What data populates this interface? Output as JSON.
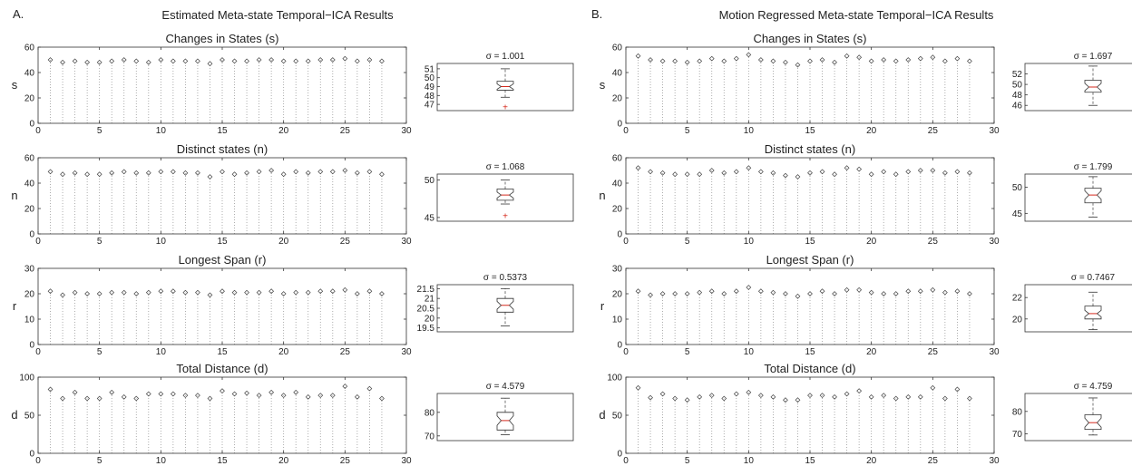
{
  "figure": {
    "panels": [
      {
        "letter": "A.",
        "title": "Estimated Meta-state Temporal−ICA Results"
      },
      {
        "letter": "B.",
        "title": "Motion Regressed Meta-state Temporal−ICA Results"
      }
    ]
  },
  "chart_data": [
    {
      "panel": "A",
      "type": "scatter",
      "title": "Changes in States (s)",
      "ylabel": "s",
      "xlim": [
        0,
        30
      ],
      "ylim": [
        0,
        60
      ],
      "xticks": [
        0,
        5,
        10,
        15,
        20,
        25,
        30
      ],
      "yticks": [
        0,
        20,
        40,
        60
      ],
      "x": [
        1,
        2,
        3,
        4,
        5,
        6,
        7,
        8,
        9,
        10,
        11,
        12,
        13,
        14,
        15,
        16,
        17,
        18,
        19,
        20,
        21,
        22,
        23,
        24,
        25,
        26,
        27,
        28
      ],
      "y": [
        50,
        48,
        49,
        48,
        48,
        49,
        50,
        49,
        48,
        50,
        49,
        49,
        49,
        47,
        50,
        49,
        49,
        50,
        50,
        49,
        49,
        49,
        50,
        50,
        51,
        49,
        50,
        49
      ],
      "box": {
        "sigma_label": "σ = 1.001",
        "yticks": [
          47,
          48,
          49,
          50,
          51
        ],
        "ylim": [
          46.3,
          51.6
        ],
        "whisker_low": 47.8,
        "q1": 48.6,
        "median": 49.0,
        "q3": 49.6,
        "whisker_high": 51.0,
        "notch_low": 48.7,
        "notch_high": 49.3,
        "outliers": [
          46.7
        ]
      }
    },
    {
      "panel": "A",
      "type": "scatter",
      "title": "Distinct states  (n)",
      "ylabel": "n",
      "xlim": [
        0,
        30
      ],
      "ylim": [
        0,
        60
      ],
      "xticks": [
        0,
        5,
        10,
        15,
        20,
        25,
        30
      ],
      "yticks": [
        0,
        20,
        40,
        60
      ],
      "x": [
        1,
        2,
        3,
        4,
        5,
        6,
        7,
        8,
        9,
        10,
        11,
        12,
        13,
        14,
        15,
        16,
        17,
        18,
        19,
        20,
        21,
        22,
        23,
        24,
        25,
        26,
        27,
        28
      ],
      "y": [
        49,
        47,
        48,
        47,
        47,
        48,
        49,
        48,
        48,
        49,
        49,
        48,
        48,
        45,
        49,
        47,
        48,
        49,
        50,
        47,
        49,
        48,
        49,
        49,
        50,
        48,
        49,
        47
      ],
      "box": {
        "sigma_label": "σ = 1.068",
        "yticks": [
          45,
          50
        ],
        "ylim": [
          44.5,
          50.8
        ],
        "whisker_low": 46.8,
        "q1": 47.3,
        "median": 48.0,
        "q3": 48.8,
        "whisker_high": 50.0,
        "notch_low": 47.6,
        "notch_high": 48.4,
        "outliers": [
          45.2
        ]
      }
    },
    {
      "panel": "A",
      "type": "scatter",
      "title": "Longest Span (r)",
      "ylabel": "r",
      "xlim": [
        0,
        30
      ],
      "ylim": [
        0,
        30
      ],
      "xticks": [
        0,
        5,
        10,
        15,
        20,
        25,
        30
      ],
      "yticks": [
        0,
        10,
        20,
        30
      ],
      "x": [
        1,
        2,
        3,
        4,
        5,
        6,
        7,
        8,
        9,
        10,
        11,
        12,
        13,
        14,
        15,
        16,
        17,
        18,
        19,
        20,
        21,
        22,
        23,
        24,
        25,
        26,
        27,
        28
      ],
      "y": [
        21,
        19.5,
        20.5,
        20,
        20,
        20.5,
        20.5,
        20,
        20.5,
        21,
        21,
        20.5,
        20.5,
        19.5,
        21,
        20.5,
        20.5,
        20.5,
        21,
        20,
        20.5,
        20.5,
        21,
        21,
        21.5,
        20,
        21,
        20
      ],
      "box": {
        "sigma_label": "σ = 0.5373",
        "yticks": [
          19.5,
          20,
          20.5,
          21,
          21.5
        ],
        "ylim": [
          19.3,
          21.7
        ],
        "whisker_low": 19.6,
        "q1": 20.3,
        "median": 20.65,
        "q3": 21.0,
        "whisker_high": 21.5,
        "notch_low": 20.45,
        "notch_high": 20.85,
        "outliers": []
      }
    },
    {
      "panel": "A",
      "type": "scatter",
      "title": "Total Distance (d)",
      "ylabel": "d",
      "xlim": [
        0,
        30
      ],
      "ylim": [
        0,
        100
      ],
      "xticks": [
        0,
        5,
        10,
        15,
        20,
        25,
        30
      ],
      "yticks": [
        0,
        50,
        100
      ],
      "x": [
        1,
        2,
        3,
        4,
        5,
        6,
        7,
        8,
        9,
        10,
        11,
        12,
        13,
        14,
        15,
        16,
        17,
        18,
        19,
        20,
        21,
        22,
        23,
        24,
        25,
        26,
        27,
        28
      ],
      "y": [
        84,
        72,
        80,
        72,
        72,
        80,
        74,
        72,
        78,
        78,
        78,
        76,
        76,
        72,
        82,
        78,
        79,
        76,
        80,
        76,
        80,
        74,
        76,
        76,
        88,
        74,
        85,
        72
      ],
      "box": {
        "sigma_label": "σ = 4.579",
        "yticks": [
          70,
          80
        ],
        "ylim": [
          68,
          88
        ],
        "whisker_low": 70.5,
        "q1": 72.5,
        "median": 76.5,
        "q3": 80.0,
        "whisker_high": 86.0,
        "notch_low": 74.5,
        "notch_high": 78.5,
        "outliers": []
      }
    },
    {
      "panel": "B",
      "type": "scatter",
      "title": "Changes in States (s)",
      "ylabel": "s",
      "xlim": [
        0,
        30
      ],
      "ylim": [
        0,
        60
      ],
      "xticks": [
        0,
        5,
        10,
        15,
        20,
        25,
        30
      ],
      "yticks": [
        0,
        20,
        40,
        60
      ],
      "x": [
        1,
        2,
        3,
        4,
        5,
        6,
        7,
        8,
        9,
        10,
        11,
        12,
        13,
        14,
        15,
        16,
        17,
        18,
        19,
        20,
        21,
        22,
        23,
        24,
        25,
        26,
        27,
        28
      ],
      "y": [
        53,
        50,
        49,
        49,
        48,
        49,
        51,
        49,
        51,
        54,
        50,
        49,
        48,
        46,
        49,
        50,
        48,
        53,
        52,
        49,
        50,
        49,
        50,
        51,
        52,
        49,
        51,
        49
      ],
      "box": {
        "sigma_label": "σ = 1.697",
        "yticks": [
          46,
          48,
          50,
          52
        ],
        "ylim": [
          45,
          54
        ],
        "whisker_low": 46.0,
        "q1": 48.5,
        "median": 49.5,
        "q3": 50.8,
        "whisker_high": 53.5,
        "notch_low": 48.8,
        "notch_high": 50.2,
        "outliers": []
      }
    },
    {
      "panel": "B",
      "type": "scatter",
      "title": "Distinct states  (n)",
      "ylabel": "n",
      "xlim": [
        0,
        30
      ],
      "ylim": [
        0,
        60
      ],
      "xticks": [
        0,
        5,
        10,
        15,
        20,
        25,
        30
      ],
      "yticks": [
        0,
        20,
        40,
        60
      ],
      "x": [
        1,
        2,
        3,
        4,
        5,
        6,
        7,
        8,
        9,
        10,
        11,
        12,
        13,
        14,
        15,
        16,
        17,
        18,
        19,
        20,
        21,
        22,
        23,
        24,
        25,
        26,
        27,
        28
      ],
      "y": [
        52,
        49,
        48,
        47,
        47,
        47,
        50,
        48,
        49,
        52,
        49,
        48,
        46,
        45,
        48,
        49,
        47,
        52,
        51,
        47,
        49,
        47,
        49,
        50,
        50,
        48,
        49,
        48
      ],
      "box": {
        "sigma_label": "σ = 1.799",
        "yticks": [
          45,
          50
        ],
        "ylim": [
          43.5,
          52.5
        ],
        "whisker_low": 44.3,
        "q1": 47.0,
        "median": 48.5,
        "q3": 49.8,
        "whisker_high": 52.0,
        "notch_low": 47.7,
        "notch_high": 49.3,
        "outliers": []
      }
    },
    {
      "panel": "B",
      "type": "scatter",
      "title": "Longest Span (r)",
      "ylabel": "r",
      "xlim": [
        0,
        30
      ],
      "ylim": [
        0,
        30
      ],
      "xticks": [
        0,
        5,
        10,
        15,
        20,
        25,
        30
      ],
      "yticks": [
        0,
        10,
        20,
        30
      ],
      "x": [
        1,
        2,
        3,
        4,
        5,
        6,
        7,
        8,
        9,
        10,
        11,
        12,
        13,
        14,
        15,
        16,
        17,
        18,
        19,
        20,
        21,
        22,
        23,
        24,
        25,
        26,
        27,
        28
      ],
      "y": [
        21,
        19.5,
        20,
        20,
        20,
        20.5,
        21,
        20,
        21,
        22.5,
        21,
        20.5,
        20,
        19,
        20,
        21,
        20,
        21.5,
        21.5,
        20.5,
        20,
        20,
        21,
        21,
        21.5,
        20.5,
        21,
        20
      ],
      "box": {
        "sigma_label": "σ = 0.7467",
        "yticks": [
          20,
          22
        ],
        "ylim": [
          18.8,
          23.2
        ],
        "whisker_low": 19.0,
        "q1": 20.0,
        "median": 20.5,
        "q3": 21.2,
        "whisker_high": 22.5,
        "notch_low": 20.2,
        "notch_high": 20.8,
        "outliers": []
      }
    },
    {
      "panel": "B",
      "type": "scatter",
      "title": "Total Distance (d)",
      "ylabel": "d",
      "xlim": [
        0,
        30
      ],
      "ylim": [
        0,
        100
      ],
      "xticks": [
        0,
        5,
        10,
        15,
        20,
        25,
        30
      ],
      "yticks": [
        0,
        50,
        100
      ],
      "x": [
        1,
        2,
        3,
        4,
        5,
        6,
        7,
        8,
        9,
        10,
        11,
        12,
        13,
        14,
        15,
        16,
        17,
        18,
        19,
        20,
        21,
        22,
        23,
        24,
        25,
        26,
        27,
        28
      ],
      "y": [
        86,
        73,
        78,
        72,
        70,
        74,
        76,
        72,
        78,
        80,
        76,
        74,
        70,
        70,
        76,
        76,
        74,
        78,
        82,
        74,
        76,
        72,
        74,
        74,
        86,
        72,
        84,
        72
      ],
      "box": {
        "sigma_label": "σ = 4.759",
        "yticks": [
          70,
          80
        ],
        "ylim": [
          67,
          88
        ],
        "whisker_low": 69.5,
        "q1": 72.0,
        "median": 75.0,
        "q3": 78.5,
        "whisker_high": 86.0,
        "notch_low": 73.0,
        "notch_high": 77.0,
        "outliers": []
      }
    }
  ]
}
